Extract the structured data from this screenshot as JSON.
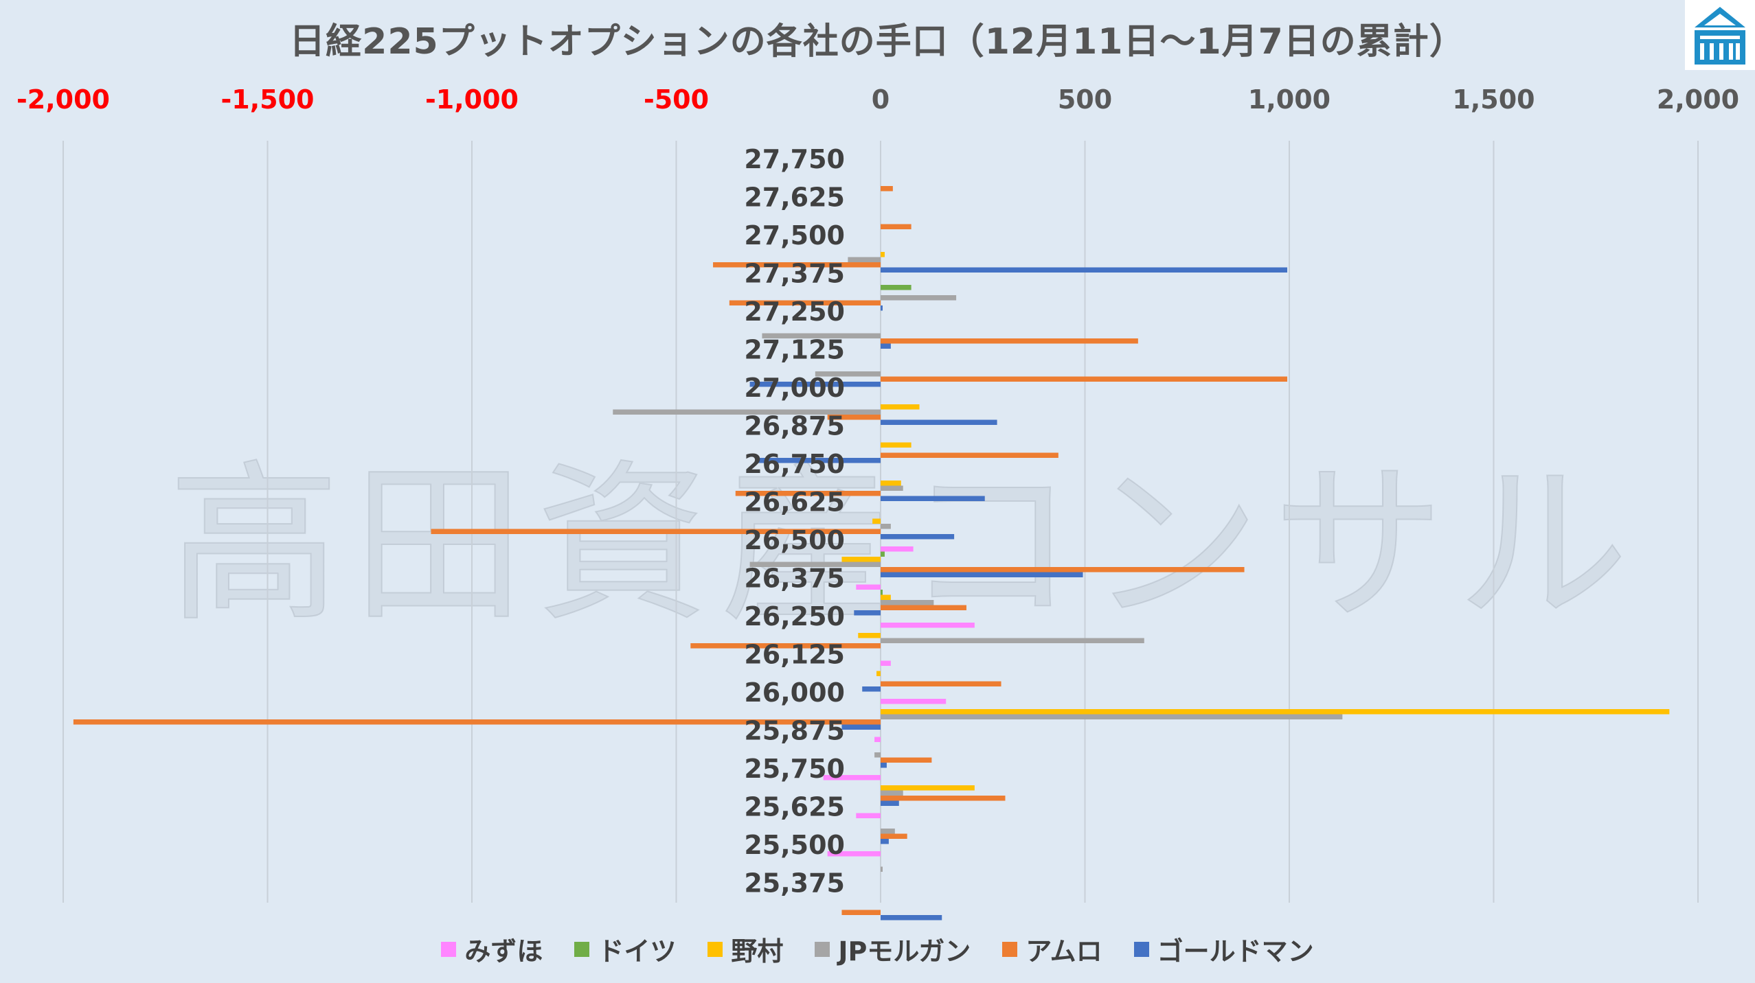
{
  "chart_data": {
    "type": "bar",
    "orientation": "horizontal",
    "title": "日経225プットオプションの各社の手口（12月11日～1月7日の累計）",
    "watermark": "高田資産コンサル",
    "xlim": [
      -2000,
      2000
    ],
    "xticks": [
      "-2,000",
      "-1,500",
      "-1,000",
      "-500",
      "0",
      "500",
      "1,000",
      "1,500",
      "2,000"
    ],
    "xtick_values": [
      -2000,
      -1500,
      -1000,
      -500,
      0,
      500,
      1000,
      1500,
      2000
    ],
    "negative_tick_color": "#ff0000",
    "positive_tick_color": "#595959",
    "grid": true,
    "legend_position": "bottom",
    "categories": [
      "27,750",
      "27,625",
      "27,500",
      "27,375",
      "27,250",
      "27,125",
      "27,000",
      "26,875",
      "26,750",
      "26,625",
      "26,500",
      "26,375",
      "26,250",
      "26,125",
      "26,000",
      "25,875",
      "25,750",
      "25,625",
      "25,500",
      "25,375"
    ],
    "series": [
      {
        "name": "みずほ",
        "color": "#ff85ff",
        "values": [
          0,
          0,
          0,
          0,
          0,
          0,
          0,
          0,
          0,
          0,
          80,
          -60,
          230,
          25,
          160,
          -15,
          -140,
          -60,
          -130,
          0
        ]
      },
      {
        "name": "ドイツ",
        "color": "#70ad47",
        "values": [
          0,
          0,
          0,
          75,
          0,
          0,
          0,
          0,
          0,
          0,
          10,
          5,
          0,
          0,
          0,
          0,
          0,
          0,
          0,
          0
        ]
      },
      {
        "name": "野村",
        "color": "#ffc000",
        "values": [
          0,
          0,
          10,
          0,
          0,
          0,
          95,
          75,
          50,
          -20,
          -95,
          25,
          -55,
          -10,
          1930,
          0,
          230,
          0,
          0,
          0
        ]
      },
      {
        "name": "JPモルガン",
        "color": "#a5a5a5",
        "values": [
          0,
          0,
          -80,
          185,
          -290,
          -160,
          -655,
          0,
          55,
          25,
          -320,
          130,
          645,
          0,
          1130,
          -15,
          55,
          35,
          5,
          0
        ]
      },
      {
        "name": "アムロ",
        "color": "#ed7d31",
        "values": [
          30,
          75,
          -410,
          -370,
          630,
          995,
          -130,
          435,
          -355,
          -1100,
          890,
          210,
          -465,
          295,
          -1975,
          125,
          305,
          65,
          0,
          -95
        ]
      },
      {
        "name": "ゴールドマン",
        "color": "#4472c4",
        "values": [
          0,
          0,
          995,
          5,
          25,
          -320,
          285,
          -300,
          255,
          180,
          495,
          -65,
          0,
          -45,
          -95,
          15,
          45,
          20,
          0,
          150
        ]
      }
    ]
  },
  "logo": {
    "name": "company-logo",
    "color": "#1f8fc9"
  }
}
